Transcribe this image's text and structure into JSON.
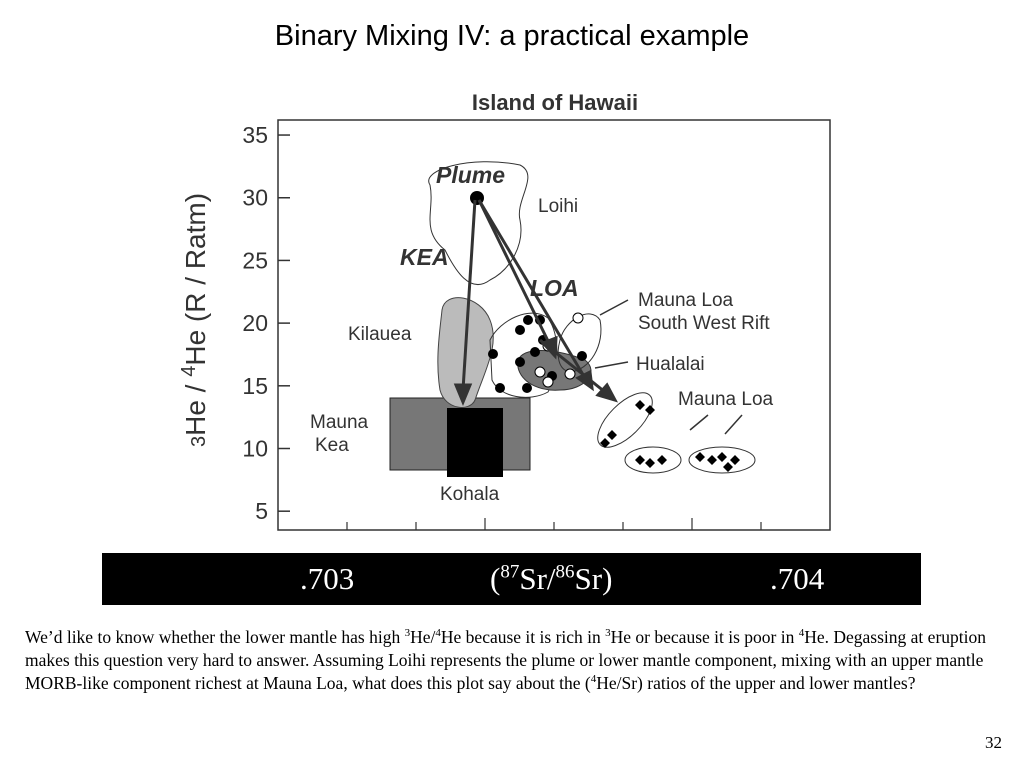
{
  "slide": {
    "title": "Binary Mixing IV: a practical example",
    "figure": {
      "title": "Island of Hawaii",
      "y_label_parts": [
        "3",
        "He / ",
        "4",
        "He (R / Ratm)"
      ],
      "ylim": [
        3.5,
        36.2
      ],
      "yticks": [
        5,
        10,
        15,
        20,
        25,
        30,
        35
      ],
      "annotations": [
        "Plume",
        "Loihi",
        "KEA",
        "LOA",
        "Mauna Loa",
        "South West Rift",
        "Kilauea",
        "Hualalai",
        "Mauna Loa",
        "Mauna",
        "Kea",
        "Kohala"
      ]
    },
    "x_bar": {
      "left": ".703",
      "label_parts": [
        "(",
        "87",
        "Sr/",
        "86",
        "Sr)"
      ],
      "right": ".704"
    },
    "paragraph": [
      "We’d like to know whether the lower mantle has high ",
      "3",
      "He/",
      "4",
      "He because it is rich in ",
      "3",
      "He or because it is poor in ",
      "4",
      "He.  Degassing at eruption makes this question very hard to answer. Assuming Loihi represents the plume or lower mantle component, mixing with an upper mantle MORB-like component richest at Mauna Loa, what does this plot say about the (",
      "4",
      "He/Sr) ratios of the upper and lower mantles?"
    ],
    "page_number": "32"
  }
}
